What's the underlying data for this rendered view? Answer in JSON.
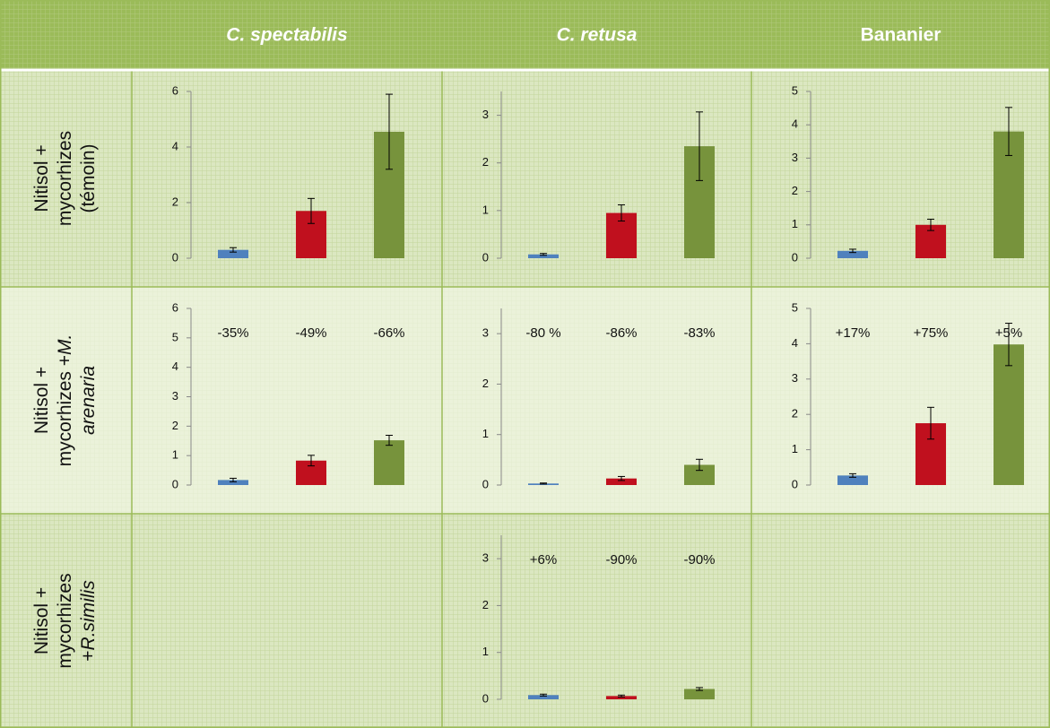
{
  "table": {
    "columns": [
      {
        "text": "C. spectabilis",
        "italic": true
      },
      {
        "text": "C. retusa",
        "italic": true
      },
      {
        "text": "Bananier",
        "italic": false
      }
    ],
    "rows": [
      {
        "label": [
          [
            {
              "text": "Nitisol +"
            }
          ],
          [
            {
              "text": "mycorhizes"
            }
          ],
          [
            {
              "text": "(témoin)"
            }
          ]
        ],
        "cells": [
          {
            "type": "bar",
            "values": [
              0.3,
              1.7,
              4.55
            ],
            "errors": [
              0.08,
              0.45,
              1.35
            ],
            "colors": [
              "#4f81bd",
              "#c0101e",
              "#77933c"
            ],
            "ylim": [
              0,
              6
            ],
            "yticks": [
              0,
              2,
              4,
              6
            ]
          },
          {
            "type": "bar",
            "values": [
              0.08,
              0.95,
              2.35
            ],
            "errors": [
              0.02,
              0.17,
              0.72
            ],
            "colors": [
              "#4f81bd",
              "#c0101e",
              "#77933c"
            ],
            "ylim": [
              0,
              3.5
            ],
            "yticks": [
              0,
              1,
              2,
              3
            ]
          },
          {
            "type": "bar",
            "values": [
              0.22,
              1,
              3.8
            ],
            "errors": [
              0.05,
              0.17,
              0.72
            ],
            "colors": [
              "#4f81bd",
              "#c0101e",
              "#77933c"
            ],
            "ylim": [
              0,
              5
            ],
            "yticks": [
              0,
              1,
              2,
              3,
              4,
              5
            ]
          }
        ]
      },
      {
        "label": [
          [
            {
              "text": "Nitisol +"
            }
          ],
          [
            {
              "text": "mycorhizes +"
            },
            {
              "text": "M.",
              "italic": true
            }
          ],
          [
            {
              "text": "arenaria",
              "italic": true
            }
          ]
        ],
        "cells": [
          {
            "type": "bar",
            "values": [
              0.17,
              0.83,
              1.52
            ],
            "errors": [
              0.06,
              0.18,
              0.17
            ],
            "colors": [
              "#4f81bd",
              "#c0101e",
              "#77933c"
            ],
            "ylim": [
              0,
              6
            ],
            "yticks": [
              0,
              1,
              2,
              3,
              4,
              5,
              6
            ],
            "annotations": [
              "-35%",
              "-49%",
              "-66%"
            ]
          },
          {
            "type": "bar",
            "values": [
              0.03,
              0.13,
              0.4
            ],
            "errors": [
              0.01,
              0.04,
              0.11
            ],
            "colors": [
              "#4f81bd",
              "#c0101e",
              "#77933c"
            ],
            "ylim": [
              0,
              3.5
            ],
            "yticks": [
              0,
              1,
              2,
              3
            ],
            "annotations": [
              "-80 %",
              "-86%",
              "-83%"
            ]
          },
          {
            "type": "bar",
            "values": [
              0.27,
              1.75,
              3.98
            ],
            "errors": [
              0.05,
              0.45,
              0.6
            ],
            "colors": [
              "#4f81bd",
              "#c0101e",
              "#77933c"
            ],
            "ylim": [
              0,
              5
            ],
            "yticks": [
              0,
              1,
              2,
              3,
              4,
              5
            ],
            "annotations": [
              "+17%",
              "+75%",
              "+5%"
            ]
          }
        ]
      },
      {
        "label": [
          [
            {
              "text": "Nitisol +"
            }
          ],
          [
            {
              "text": "mycorhizes"
            }
          ],
          [
            {
              "text": "+"
            },
            {
              "text": "R.similis",
              "italic": true
            }
          ]
        ],
        "cells": [
          null,
          {
            "type": "bar",
            "values": [
              0.09,
              0.07,
              0.22
            ],
            "errors": [
              0.02,
              0.02,
              0.03
            ],
            "colors": [
              "#4f81bd",
              "#c0101e",
              "#77933c"
            ],
            "ylim": [
              0,
              3.5
            ],
            "yticks": [
              0,
              1,
              2,
              3
            ],
            "annotations": [
              "+6%",
              "-90%",
              "-90%"
            ]
          },
          null
        ]
      }
    ]
  }
}
